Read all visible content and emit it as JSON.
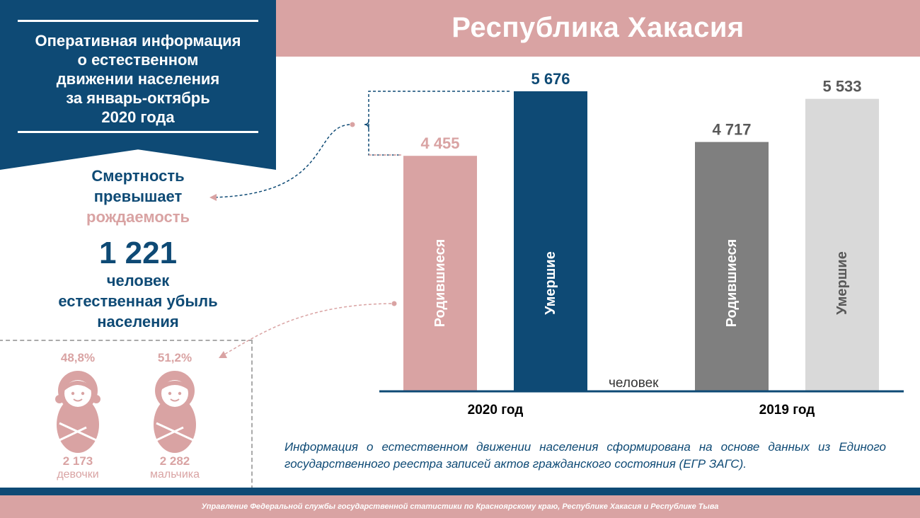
{
  "header": {
    "region_title": "Республика Хакасия"
  },
  "banner": {
    "title": "Оперативная информация\nо естественном\nдвижении населения\nза январь-октябрь\n2020 года"
  },
  "statement": {
    "line1": "Смертность",
    "line2": "превышает",
    "line3": "рождаемость",
    "number": "1 221",
    "unit_line1": "человек",
    "unit_line2": "естественная убыль",
    "unit_line3": "населения"
  },
  "gender": {
    "girls": {
      "percent": "48,8%",
      "count": "2 173",
      "label": "девочки"
    },
    "boys": {
      "percent": "51,2%",
      "count": "2 282",
      "label": "мальчика"
    }
  },
  "chart_data": {
    "type": "bar",
    "categories": [
      "2020 год",
      "2019 год"
    ],
    "series": [
      {
        "name": "Родившиеся",
        "values": [
          4455,
          4717
        ]
      },
      {
        "name": "Умершие",
        "values": [
          5676,
          5533
        ]
      }
    ],
    "value_labels": [
      [
        "4 455",
        "5 676"
      ],
      [
        "4 717",
        "5 533"
      ]
    ],
    "unit_label": "человек",
    "colors": {
      "2020": {
        "births": "#d9a3a3",
        "deaths": "#0e4a75"
      },
      "2019": {
        "births": "#7f7f7f",
        "deaths": "#d9d9d9"
      },
      "labels": {
        "births_2020": "#d9a3a3",
        "deaths_2020": "#0e4a75",
        "2019": "#595959"
      }
    },
    "ylim": [
      0,
      5676
    ]
  },
  "note": "Информация о естественном движении населения сформирована на основе данных из Единого государственного реестра записей актов гражданского состояния (ЕГР ЗАГС).",
  "footer": "Управление Федеральной службы государственной статистики по Красноярскому краю, Республике Хакасия и Республике Тыва",
  "colors": {
    "navy": "#0e4a75",
    "pink": "#d9a3a3"
  }
}
